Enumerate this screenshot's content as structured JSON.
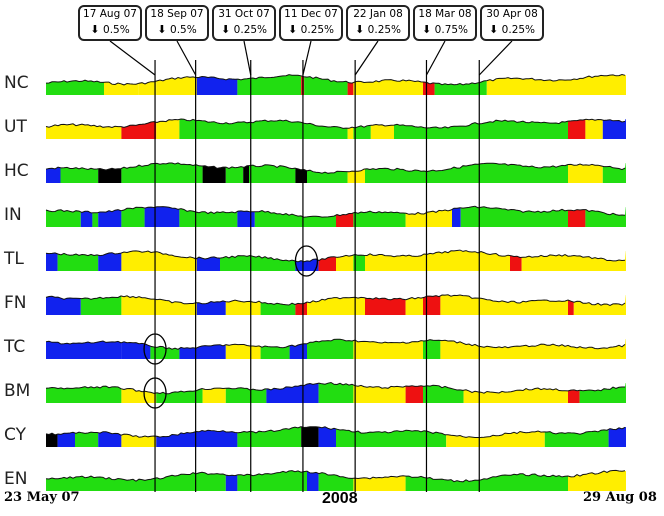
{
  "chart_data": {
    "type": "heatmap",
    "title": "",
    "x_start_label": "23 May 07",
    "x_mid_label": "2008",
    "x_end_label": "29 Aug 08",
    "colors": {
      "green": "#22dd11",
      "yellow": "#ffee00",
      "blue": "#1122ee",
      "red": "#ee1111",
      "black": "#000000"
    },
    "annotations": [
      {
        "date": "17 Aug 07",
        "direction": "down",
        "change": "0.5%",
        "t": 0.188
      },
      {
        "date": "18 Sep 07",
        "direction": "down",
        "change": "0.5%",
        "t": 0.258
      },
      {
        "date": "31 Oct 07",
        "direction": "down",
        "change": "0.25%",
        "t": 0.353
      },
      {
        "date": "11 Dec 07",
        "direction": "down",
        "change": "0.25%",
        "t": 0.443
      },
      {
        "date": "22 Jan 08",
        "direction": "down",
        "change": "0.25%",
        "t": 0.533
      },
      {
        "date": "18 Mar 08",
        "direction": "down",
        "change": "0.75%",
        "t": 0.656
      },
      {
        "date": "30 Apr 08",
        "direction": "down",
        "change": "0.25%",
        "t": 0.747
      }
    ],
    "rows": [
      {
        "label": "NC",
        "segments": [
          [
            0,
            0.1,
            "green"
          ],
          [
            0.1,
            0.16,
            "yellow"
          ],
          [
            0.16,
            0.19,
            "yellow"
          ],
          [
            0.19,
            0.26,
            "yellow"
          ],
          [
            0.26,
            0.33,
            "blue"
          ],
          [
            0.33,
            0.44,
            "green"
          ],
          [
            0.44,
            0.445,
            "red"
          ],
          [
            0.445,
            0.52,
            "green"
          ],
          [
            0.52,
            0.53,
            "red"
          ],
          [
            0.53,
            0.65,
            "yellow"
          ],
          [
            0.65,
            0.67,
            "red"
          ],
          [
            0.67,
            0.76,
            "green"
          ],
          [
            0.76,
            0.9,
            "yellow"
          ],
          [
            0.9,
            1,
            "yellow"
          ]
        ]
      },
      {
        "label": "UT",
        "segments": [
          [
            0,
            0.13,
            "yellow"
          ],
          [
            0.13,
            0.19,
            "red"
          ],
          [
            0.19,
            0.23,
            "yellow"
          ],
          [
            0.23,
            0.52,
            "green"
          ],
          [
            0.52,
            0.53,
            "yellow"
          ],
          [
            0.53,
            0.56,
            "green"
          ],
          [
            0.56,
            0.6,
            "yellow"
          ],
          [
            0.6,
            0.9,
            "green"
          ],
          [
            0.9,
            0.93,
            "red"
          ],
          [
            0.93,
            0.96,
            "yellow"
          ],
          [
            0.96,
            1,
            "blue"
          ]
        ]
      },
      {
        "label": "HC",
        "segments": [
          [
            0,
            0.025,
            "blue"
          ],
          [
            0.025,
            0.09,
            "green"
          ],
          [
            0.09,
            0.13,
            "black"
          ],
          [
            0.13,
            0.27,
            "green"
          ],
          [
            0.27,
            0.31,
            "black"
          ],
          [
            0.31,
            0.34,
            "green"
          ],
          [
            0.34,
            0.35,
            "black"
          ],
          [
            0.35,
            0.43,
            "green"
          ],
          [
            0.43,
            0.45,
            "black"
          ],
          [
            0.45,
            0.52,
            "green"
          ],
          [
            0.52,
            0.55,
            "yellow"
          ],
          [
            0.55,
            0.9,
            "green"
          ],
          [
            0.9,
            0.96,
            "yellow"
          ],
          [
            0.96,
            1,
            "green"
          ]
        ]
      },
      {
        "label": "IN",
        "segments": [
          [
            0,
            0.06,
            "green"
          ],
          [
            0.06,
            0.08,
            "blue"
          ],
          [
            0.08,
            0.09,
            "green"
          ],
          [
            0.09,
            0.13,
            "blue"
          ],
          [
            0.13,
            0.17,
            "green"
          ],
          [
            0.17,
            0.23,
            "blue"
          ],
          [
            0.23,
            0.33,
            "green"
          ],
          [
            0.33,
            0.36,
            "blue"
          ],
          [
            0.36,
            0.5,
            "green"
          ],
          [
            0.5,
            0.53,
            "red"
          ],
          [
            0.53,
            0.62,
            "green"
          ],
          [
            0.62,
            0.7,
            "yellow"
          ],
          [
            0.7,
            0.715,
            "blue"
          ],
          [
            0.715,
            0.9,
            "green"
          ],
          [
            0.9,
            0.93,
            "red"
          ],
          [
            0.93,
            1,
            "green"
          ]
        ]
      },
      {
        "label": "TL",
        "segments": [
          [
            0,
            0.02,
            "blue"
          ],
          [
            0.02,
            0.09,
            "green"
          ],
          [
            0.09,
            0.13,
            "blue"
          ],
          [
            0.13,
            0.26,
            "yellow"
          ],
          [
            0.26,
            0.3,
            "blue"
          ],
          [
            0.3,
            0.43,
            "green"
          ],
          [
            0.43,
            0.47,
            "blue"
          ],
          [
            0.47,
            0.5,
            "red"
          ],
          [
            0.5,
            0.53,
            "yellow"
          ],
          [
            0.53,
            0.55,
            "green"
          ],
          [
            0.55,
            0.8,
            "yellow"
          ],
          [
            0.8,
            0.82,
            "red"
          ],
          [
            0.82,
            1,
            "yellow"
          ]
        ]
      },
      {
        "label": "FN",
        "segments": [
          [
            0,
            0.06,
            "blue"
          ],
          [
            0.06,
            0.13,
            "green"
          ],
          [
            0.13,
            0.26,
            "yellow"
          ],
          [
            0.26,
            0.31,
            "blue"
          ],
          [
            0.31,
            0.37,
            "yellow"
          ],
          [
            0.37,
            0.43,
            "green"
          ],
          [
            0.43,
            0.45,
            "red"
          ],
          [
            0.45,
            0.55,
            "yellow"
          ],
          [
            0.55,
            0.62,
            "red"
          ],
          [
            0.62,
            0.65,
            "yellow"
          ],
          [
            0.65,
            0.68,
            "red"
          ],
          [
            0.68,
            0.9,
            "yellow"
          ],
          [
            0.9,
            0.91,
            "red"
          ],
          [
            0.91,
            1,
            "yellow"
          ]
        ]
      },
      {
        "label": "TC",
        "segments": [
          [
            0,
            0.13,
            "blue"
          ],
          [
            0.13,
            0.18,
            "blue"
          ],
          [
            0.18,
            0.23,
            "green"
          ],
          [
            0.23,
            0.31,
            "blue"
          ],
          [
            0.31,
            0.37,
            "yellow"
          ],
          [
            0.37,
            0.42,
            "green"
          ],
          [
            0.42,
            0.45,
            "blue"
          ],
          [
            0.45,
            0.53,
            "green"
          ],
          [
            0.53,
            0.65,
            "yellow"
          ],
          [
            0.65,
            0.68,
            "green"
          ],
          [
            0.68,
            1,
            "yellow"
          ]
        ]
      },
      {
        "label": "BM",
        "segments": [
          [
            0,
            0.13,
            "green"
          ],
          [
            0.13,
            0.19,
            "yellow"
          ],
          [
            0.19,
            0.27,
            "green"
          ],
          [
            0.27,
            0.31,
            "yellow"
          ],
          [
            0.31,
            0.38,
            "green"
          ],
          [
            0.38,
            0.47,
            "blue"
          ],
          [
            0.47,
            0.53,
            "green"
          ],
          [
            0.53,
            0.62,
            "yellow"
          ],
          [
            0.62,
            0.65,
            "red"
          ],
          [
            0.65,
            0.72,
            "green"
          ],
          [
            0.72,
            0.9,
            "yellow"
          ],
          [
            0.9,
            0.92,
            "red"
          ],
          [
            0.92,
            1,
            "green"
          ]
        ]
      },
      {
        "label": "CY",
        "segments": [
          [
            0,
            0.02,
            "black"
          ],
          [
            0.02,
            0.05,
            "blue"
          ],
          [
            0.05,
            0.09,
            "green"
          ],
          [
            0.09,
            0.13,
            "blue"
          ],
          [
            0.13,
            0.19,
            "yellow"
          ],
          [
            0.19,
            0.33,
            "blue"
          ],
          [
            0.33,
            0.44,
            "green"
          ],
          [
            0.44,
            0.47,
            "black"
          ],
          [
            0.47,
            0.5,
            "blue"
          ],
          [
            0.5,
            0.69,
            "green"
          ],
          [
            0.69,
            0.86,
            "yellow"
          ],
          [
            0.86,
            0.97,
            "green"
          ],
          [
            0.97,
            1,
            "blue"
          ]
        ]
      },
      {
        "label": "EN",
        "segments": [
          [
            0,
            0.31,
            "green"
          ],
          [
            0.31,
            0.33,
            "blue"
          ],
          [
            0.33,
            0.45,
            "green"
          ],
          [
            0.45,
            0.47,
            "blue"
          ],
          [
            0.47,
            0.53,
            "green"
          ],
          [
            0.53,
            0.62,
            "yellow"
          ],
          [
            0.62,
            0.65,
            "green"
          ],
          [
            0.65,
            0.9,
            "green"
          ],
          [
            0.9,
            1,
            "yellow"
          ]
        ]
      }
    ],
    "circled_marks": [
      {
        "row": "TL",
        "t": 0.449
      },
      {
        "row": "TC",
        "t": 0.188
      },
      {
        "row": "BM",
        "t": 0.188
      }
    ]
  }
}
